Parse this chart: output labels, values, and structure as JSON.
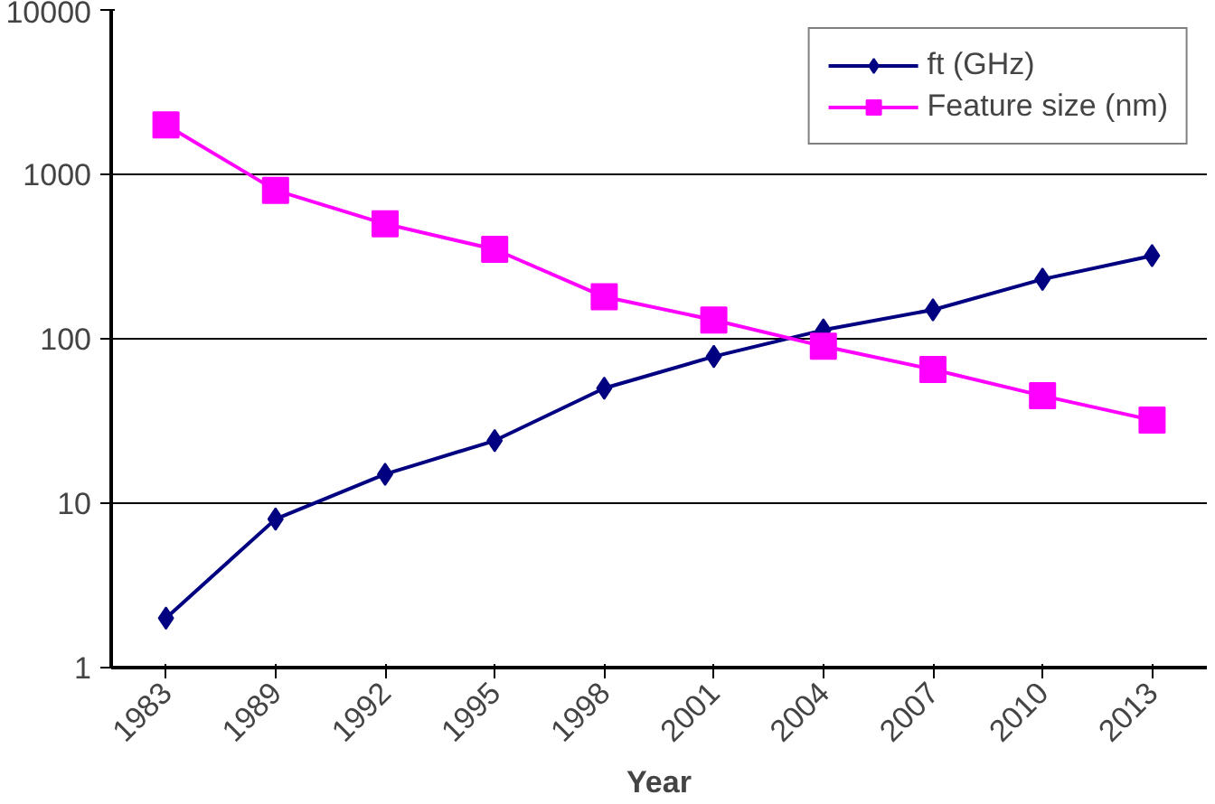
{
  "chart_data": {
    "type": "line",
    "xlabel": "Year",
    "categories": [
      "1983",
      "1989",
      "1992",
      "1995",
      "1998",
      "2001",
      "2004",
      "2007",
      "2010",
      "2013"
    ],
    "series": [
      {
        "name": "ft (GHz)",
        "color": "#000080",
        "marker": "diamond",
        "values": [
          2,
          8,
          15,
          24,
          50,
          78,
          113,
          150,
          230,
          320
        ]
      },
      {
        "name": "Feature size (nm)",
        "color": "#ff00ff",
        "marker": "square",
        "values": [
          2000,
          800,
          500,
          350,
          180,
          130,
          90,
          65,
          45,
          32
        ]
      }
    ],
    "log": true,
    "ylim": [
      1,
      10000
    ],
    "yticks": [
      1,
      10,
      100,
      1000,
      10000
    ],
    "grid": "y",
    "legend": "top right"
  }
}
